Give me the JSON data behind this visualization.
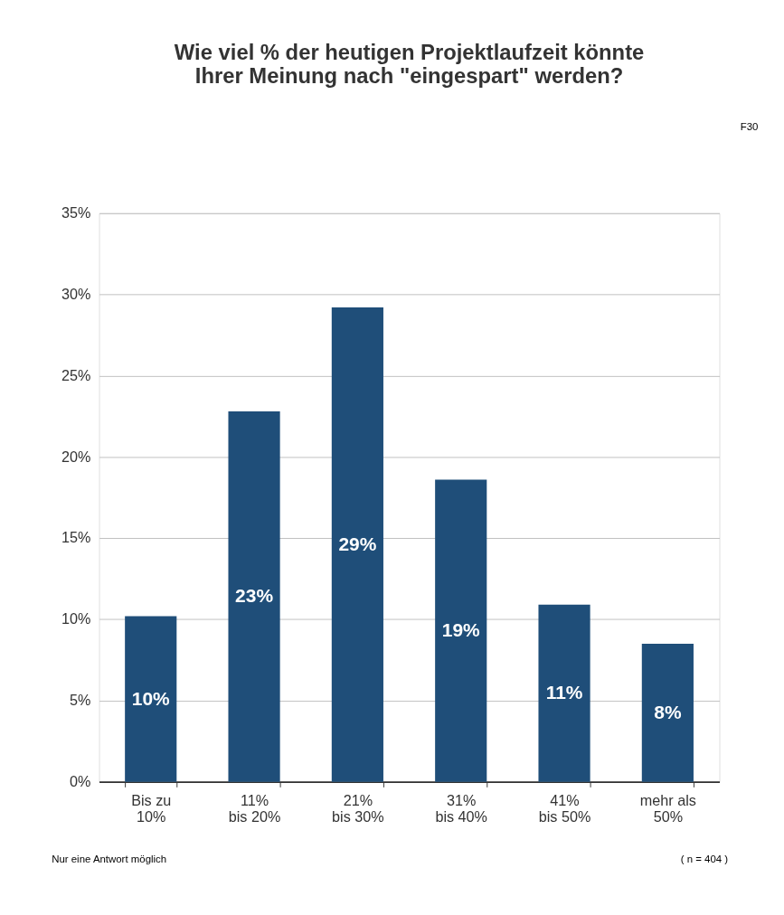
{
  "chart_data": {
    "type": "bar",
    "title": "Wie viel % der heutigen Projektlaufzeit könnte\nIhrer Meinung nach \"eingespart\" werden?",
    "categories": [
      "Bis zu\n10%",
      "11%\nbis 20%",
      "21%\nbis 30%",
      "31%\nbis 40%",
      "41%\nbis 50%",
      "mehr als\n50%"
    ],
    "values": [
      10.2,
      22.8,
      29.2,
      18.6,
      10.9,
      8.5
    ],
    "value_labels": [
      "10%",
      "23%",
      "29%",
      "19%",
      "11%",
      "8%"
    ],
    "color": "#1f4e79",
    "ylim": [
      0,
      35
    ],
    "yticks": [
      {
        "value": 0,
        "label": "0%"
      },
      {
        "value": 5,
        "label": "5%"
      },
      {
        "value": 10,
        "label": "10%"
      },
      {
        "value": 15,
        "label": "15%"
      },
      {
        "value": 20,
        "label": "20%"
      },
      {
        "value": 25,
        "label": "25%"
      },
      {
        "value": 30,
        "label": "30%"
      },
      {
        "value": 35,
        "label": "35%"
      }
    ],
    "grid": "y",
    "annotations": [
      "F30",
      "Nur eine Antwort möglich",
      "( n = 404 )"
    ]
  }
}
